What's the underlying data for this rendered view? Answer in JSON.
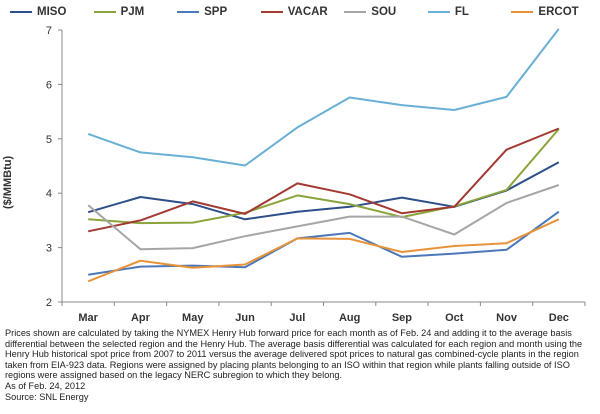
{
  "chart_data": {
    "type": "line",
    "title": "",
    "xlabel": "",
    "ylabel": "($/MMBtu)",
    "ylim": [
      2,
      7
    ],
    "yticks": [
      2,
      3,
      4,
      5,
      6,
      7
    ],
    "grid": false,
    "legend_position": "top",
    "categories": [
      "Mar",
      "Apr",
      "May",
      "Jun",
      "Jul",
      "Aug",
      "Sep",
      "Oct",
      "Nov",
      "Dec"
    ],
    "series": [
      {
        "name": "MISO",
        "color": "#2e4f8a",
        "values": [
          3.65,
          3.93,
          3.8,
          3.52,
          3.66,
          3.75,
          3.92,
          3.75,
          4.05,
          4.57
        ]
      },
      {
        "name": "PJM",
        "color": "#8aa43c",
        "values": [
          3.52,
          3.45,
          3.46,
          3.64,
          3.96,
          3.8,
          3.56,
          3.76,
          4.06,
          5.18
        ]
      },
      {
        "name": "SPP",
        "color": "#4a78b8",
        "values": [
          2.5,
          2.65,
          2.67,
          2.64,
          3.17,
          3.27,
          2.83,
          2.89,
          2.96,
          3.66
        ]
      },
      {
        "name": "VACAR",
        "color": "#a23a32",
        "values": [
          3.3,
          3.5,
          3.85,
          3.62,
          4.18,
          3.98,
          3.63,
          3.75,
          4.8,
          5.19
        ]
      },
      {
        "name": "SOU",
        "color": "#a6a6a6",
        "values": [
          3.78,
          2.97,
          2.99,
          3.21,
          3.39,
          3.57,
          3.57,
          3.24,
          3.82,
          4.15
        ]
      },
      {
        "name": "FL",
        "color": "#6ab0d6",
        "values": [
          5.09,
          4.75,
          4.66,
          4.51,
          5.21,
          5.76,
          5.62,
          5.53,
          5.77,
          7.02
        ]
      },
      {
        "name": "ERCOT",
        "color": "#e8933a",
        "values": [
          2.38,
          2.76,
          2.63,
          2.69,
          3.17,
          3.16,
          2.92,
          3.03,
          3.08,
          3.52
        ]
      }
    ]
  },
  "notes": {
    "description": "Prices shown are calculated by taking the NYMEX Henry Hub forward price for each month as of Feb. 24 and adding it to the average basis differential between the selected region and the Henry Hub. The average basis differential was calculated for each region and month using the Henry Hub historical spot price from 2007 to 2011 versus the average delivered spot prices to natural gas combined-cycle plants in the region taken from EIA-923 data. Regions were assigned by placing plants belonging to an ISO within that region while plants falling outside of ISO regions were assigned based on the legacy NERC subregion to which they belong.",
    "as_of": "As of Feb. 24, 2012",
    "source": "Source: SNL Energy"
  }
}
